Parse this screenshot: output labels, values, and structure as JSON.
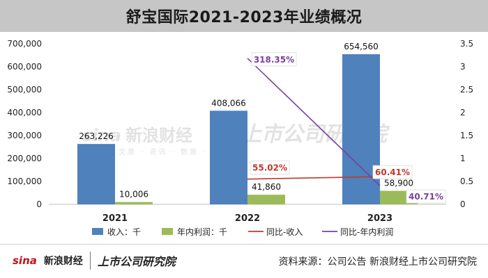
{
  "title": "舒宝国际2021-2023年业绩概况",
  "source_text": "资料来源：公司公告  新浪财经上市公司研究院",
  "watermark": {
    "brand": "sina",
    "name": "新浪财经",
    "institute": "上市公司研究院",
    "sub": "文章 · 资讯 · 数据 · 服"
  },
  "footer": {
    "brand": "sina",
    "name": "新浪财经",
    "institute": "上市公司研究院"
  },
  "colors": {
    "revenue": "#4f81bd",
    "profit": "#9bbb59",
    "yoy_revenue": "#c0392b",
    "yoy_profit": "#7b3fa0",
    "title_bg": "#c6c6c6"
  },
  "chart_data": {
    "type": "bar",
    "categories": [
      "2021",
      "2022",
      "2023"
    ],
    "series": [
      {
        "name": "收入：千",
        "type": "bar",
        "axis": "left",
        "values": [
          263226,
          408066,
          654560
        ],
        "labels": [
          "263,226",
          "408,066",
          "654,560"
        ]
      },
      {
        "name": "年内利润：千",
        "type": "bar",
        "axis": "left",
        "values": [
          10006,
          41860,
          58900
        ],
        "labels": [
          "10,006",
          "41,860",
          "58,900"
        ]
      },
      {
        "name": "同比-收入",
        "type": "line",
        "axis": "right",
        "values": [
          null,
          0.5502,
          0.6041
        ],
        "labels": [
          "",
          "55.02%",
          "60.41%"
        ]
      },
      {
        "name": "同比-年内利润",
        "type": "line",
        "axis": "right",
        "values": [
          null,
          3.1835,
          0.4071
        ],
        "labels": [
          "",
          "318.35%",
          "40.71%"
        ]
      }
    ],
    "left_axis": {
      "min": 0,
      "max": 700000,
      "step": 100000,
      "tick_labels": [
        "0",
        "100,000",
        "200,000",
        "300,000",
        "400,000",
        "500,000",
        "600,000",
        "700,000"
      ]
    },
    "right_axis": {
      "min": 0,
      "max": 3.5,
      "step": 0.5,
      "tick_labels": [
        "0",
        "0.5",
        "1",
        "1.5",
        "2",
        "2.5",
        "3",
        "3.5"
      ]
    },
    "grid": false,
    "legend_position": "bottom"
  }
}
